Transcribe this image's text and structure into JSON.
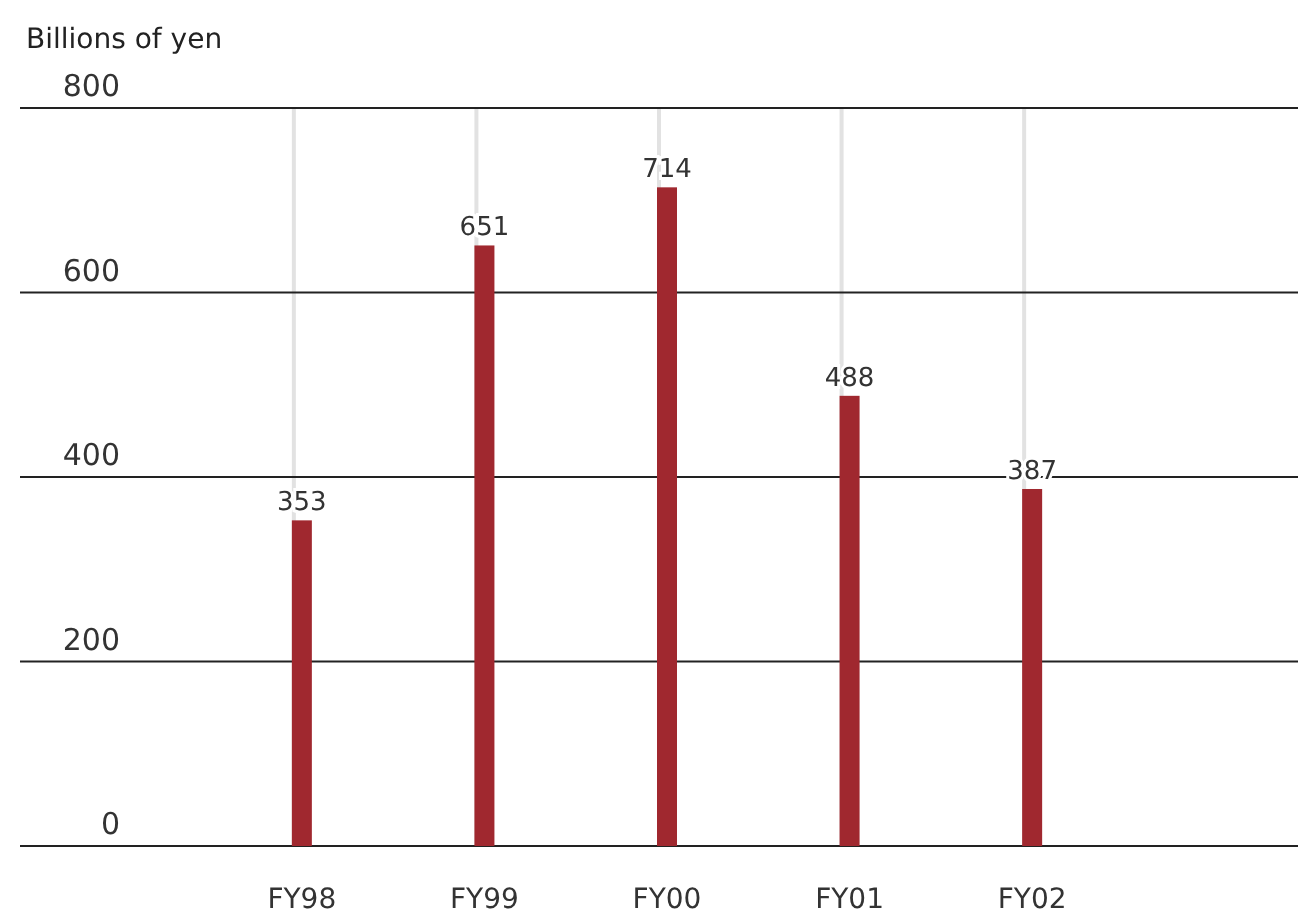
{
  "chart_data": {
    "type": "bar",
    "ylabel": "Billions of yen",
    "categories": [
      "FY98",
      "FY99",
      "FY00",
      "FY01",
      "FY02"
    ],
    "values": [
      353,
      651,
      714,
      488,
      387
    ],
    "color": "#a0282f",
    "ylim": [
      0,
      800
    ],
    "yticks": [
      0,
      200,
      400,
      600,
      800
    ],
    "grid": true,
    "data_labels": true
  }
}
